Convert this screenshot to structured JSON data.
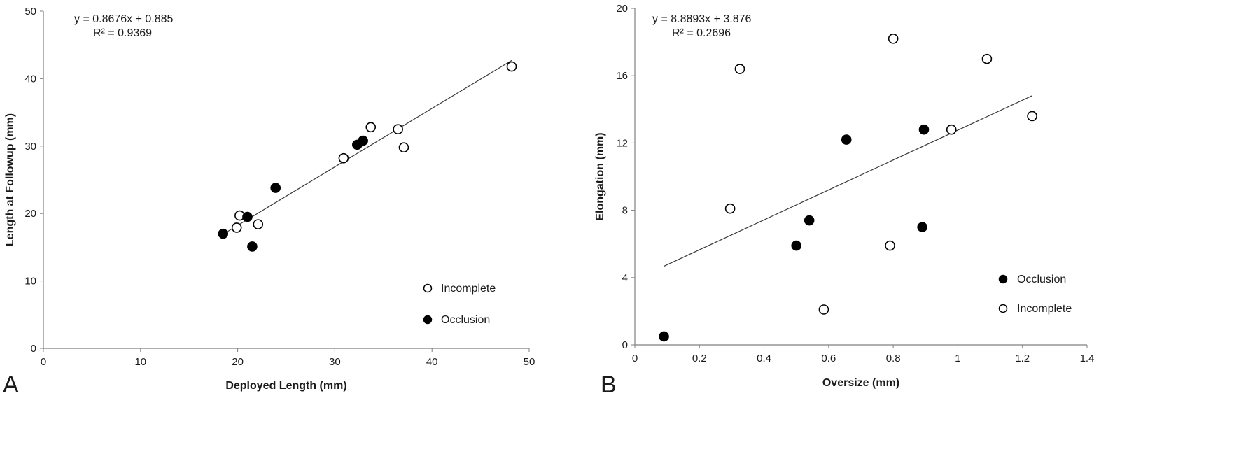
{
  "chart_data": [
    {
      "type": "scatter",
      "panel_label": "A",
      "xlabel": "Deployed Length (mm)",
      "ylabel": "Length at Followup (mm)",
      "xlim": [
        0,
        50
      ],
      "ylim": [
        0,
        50
      ],
      "xticks": [
        0,
        10,
        20,
        30,
        40,
        50
      ],
      "yticks": [
        0,
        10,
        20,
        30,
        40,
        50
      ],
      "grid": false,
      "legend_position": "bottom-right",
      "legend_order": [
        "Incomplete",
        "Occlusion"
      ],
      "equation": "y = 0.8676x + 0.885",
      "r_squared": "R² = 0.9369",
      "trendline": {
        "slope": 0.8676,
        "intercept": 0.885,
        "x_range": [
          18.5,
          48.2
        ]
      },
      "series": [
        {
          "name": "Incomplete",
          "marker": "open-circle",
          "color": "#000000",
          "points": [
            [
              20.2,
              19.7
            ],
            [
              19.9,
              17.9
            ],
            [
              22.1,
              18.4
            ],
            [
              30.9,
              28.2
            ],
            [
              33.7,
              32.8
            ],
            [
              36.5,
              32.5
            ],
            [
              37.1,
              29.8
            ],
            [
              48.2,
              41.8
            ]
          ]
        },
        {
          "name": "Occlusion",
          "marker": "filled-circle",
          "color": "#000000",
          "points": [
            [
              18.5,
              17.0
            ],
            [
              21.0,
              19.5
            ],
            [
              21.5,
              15.1
            ],
            [
              23.9,
              23.8
            ],
            [
              32.3,
              30.2
            ],
            [
              32.9,
              30.8
            ]
          ]
        }
      ]
    },
    {
      "type": "scatter",
      "panel_label": "B",
      "xlabel": "Oversize (mm)",
      "ylabel": "Elongation (mm)",
      "xlim": [
        0,
        1.4
      ],
      "ylim": [
        0,
        20
      ],
      "xticks": [
        0,
        0.2,
        0.4,
        0.6,
        0.8,
        1,
        1.2,
        1.4
      ],
      "yticks": [
        0,
        4,
        8,
        12,
        16,
        20
      ],
      "grid": false,
      "legend_position": "bottom-right",
      "legend_order": [
        "Occlusion",
        "Incomplete"
      ],
      "equation": "y = 8.8893x + 3.876",
      "r_squared": "R² = 0.2696",
      "trendline": {
        "slope": 8.8893,
        "intercept": 3.876,
        "x_range": [
          0.09,
          1.23
        ]
      },
      "series": [
        {
          "name": "Incomplete",
          "marker": "open-circle",
          "color": "#000000",
          "points": [
            [
              0.295,
              8.1
            ],
            [
              0.325,
              16.4
            ],
            [
              0.585,
              2.1
            ],
            [
              0.79,
              5.9
            ],
            [
              0.8,
              18.2
            ],
            [
              0.98,
              12.8
            ],
            [
              1.09,
              17.0
            ],
            [
              1.23,
              13.6
            ]
          ]
        },
        {
          "name": "Occlusion",
          "marker": "filled-circle",
          "color": "#000000",
          "points": [
            [
              0.09,
              0.5
            ],
            [
              0.5,
              5.9
            ],
            [
              0.54,
              7.4
            ],
            [
              0.655,
              12.2
            ],
            [
              0.89,
              7.0
            ],
            [
              0.895,
              12.8
            ]
          ]
        }
      ]
    }
  ]
}
